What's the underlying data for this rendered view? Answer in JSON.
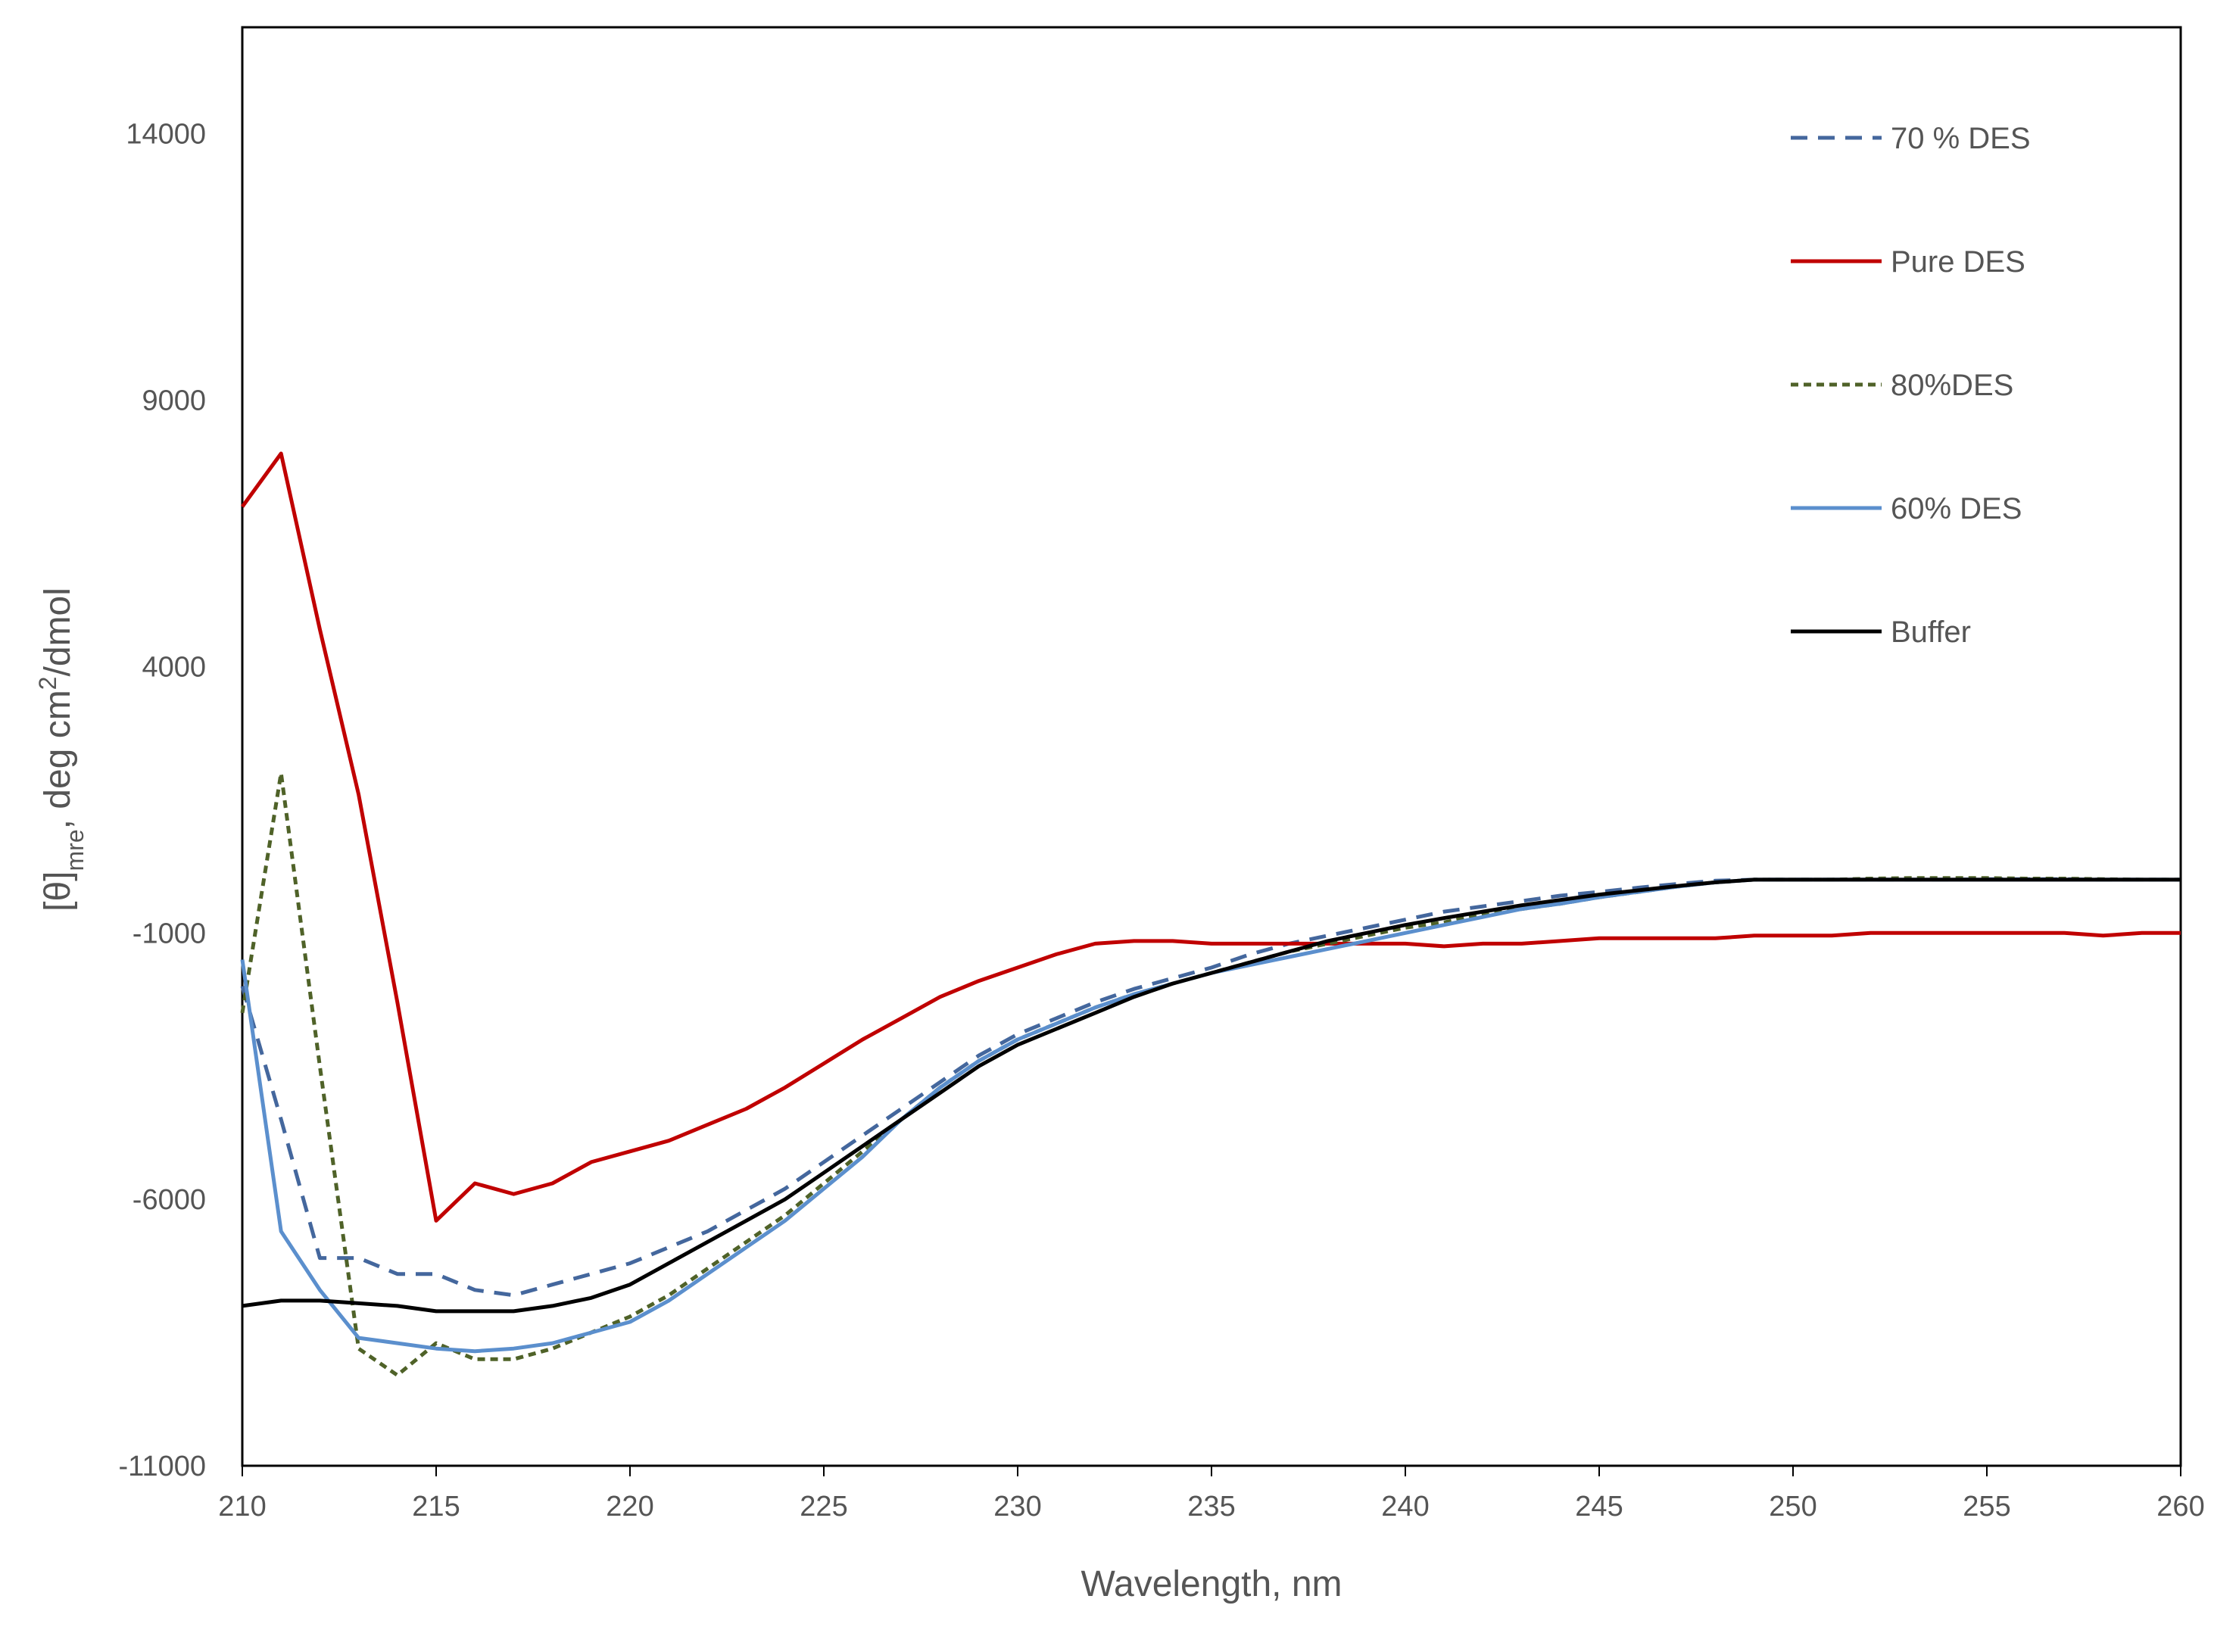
{
  "chart_data": {
    "type": "line",
    "title": "",
    "xlabel": "Wavelength, nm",
    "ylabel": {
      "main": "[θ]",
      "sub": "mre",
      "rest": ", deg cm",
      "sup": "2",
      "tail": "/dmol"
    },
    "xlim": [
      210,
      260
    ],
    "ylim": [
      -11000,
      16000
    ],
    "xticks": [
      "210",
      "215",
      "220",
      "225",
      "230",
      "235",
      "240",
      "245",
      "250",
      "255",
      "260"
    ],
    "yticks": [
      "14000",
      "9000",
      "4000",
      "-1000",
      "-6000",
      "-11000"
    ],
    "legend_position": "top-right",
    "grid": false,
    "series": [
      {
        "name": "70 % DES",
        "color": "#44679d",
        "dash": "dashed",
        "x": [
          210,
          211,
          212,
          213,
          214,
          215,
          216,
          217,
          218,
          219,
          220,
          221,
          222,
          223,
          224,
          225,
          226,
          227,
          228,
          229,
          230,
          231,
          232,
          233,
          234,
          235,
          236,
          237,
          238,
          239,
          240,
          241,
          242,
          243,
          244,
          245,
          246,
          247,
          248,
          249,
          250,
          251,
          252,
          253,
          254,
          255,
          256,
          257,
          258,
          259,
          260
        ],
        "y": [
          -2000,
          -4500,
          -7100,
          -7100,
          -7400,
          -7400,
          -7700,
          -7800,
          -7600,
          -7400,
          -7200,
          -6900,
          -6600,
          -6200,
          -5800,
          -5300,
          -4800,
          -4300,
          -3800,
          -3300,
          -2900,
          -2600,
          -2300,
          -2050,
          -1850,
          -1650,
          -1400,
          -1200,
          -1050,
          -900,
          -750,
          -600,
          -500,
          -400,
          -300,
          -230,
          -150,
          -80,
          -20,
          0,
          0,
          0,
          0,
          0,
          0,
          10,
          10,
          10,
          0,
          0,
          0
        ]
      },
      {
        "name": "Pure DES",
        "color": "#c00000",
        "dash": "solid",
        "x": [
          210,
          211,
          212,
          213,
          214,
          215,
          216,
          217,
          218,
          219,
          220,
          221,
          222,
          223,
          224,
          225,
          226,
          227,
          228,
          229,
          230,
          231,
          232,
          233,
          234,
          235,
          236,
          237,
          238,
          239,
          240,
          241,
          242,
          243,
          244,
          245,
          246,
          247,
          248,
          249,
          250,
          251,
          252,
          253,
          254,
          255,
          256,
          257,
          258,
          259,
          260
        ],
        "y": [
          7000,
          8000,
          4700,
          1600,
          -2300,
          -6400,
          -5700,
          -5900,
          -5700,
          -5300,
          -5100,
          -4900,
          -4600,
          -4300,
          -3900,
          -3450,
          -3000,
          -2600,
          -2200,
          -1900,
          -1650,
          -1400,
          -1200,
          -1150,
          -1150,
          -1200,
          -1200,
          -1200,
          -1200,
          -1200,
          -1200,
          -1250,
          -1200,
          -1200,
          -1150,
          -1100,
          -1100,
          -1100,
          -1100,
          -1050,
          -1050,
          -1050,
          -1000,
          -1000,
          -1000,
          -1000,
          -1000,
          -1000,
          -1050,
          -1000,
          -1000
        ]
      },
      {
        "name": "80%DES",
        "color": "#4f6228",
        "dash": "dotted",
        "x": [
          210,
          211,
          212,
          213,
          214,
          215,
          216,
          217,
          218,
          219,
          220,
          221,
          222,
          223,
          224,
          225,
          226,
          227,
          228,
          229,
          230,
          231,
          232,
          233,
          234,
          235,
          236,
          237,
          238,
          239,
          240,
          241,
          242,
          243,
          244,
          245,
          246,
          247,
          248,
          249,
          250,
          251,
          252,
          253,
          254,
          255,
          256,
          257,
          258,
          259,
          260
        ],
        "y": [
          -2500,
          2000,
          -3500,
          -8800,
          -9300,
          -8700,
          -9000,
          -9000,
          -8800,
          -8500,
          -8200,
          -7800,
          -7300,
          -6800,
          -6300,
          -5700,
          -5100,
          -4500,
          -3900,
          -3400,
          -3000,
          -2700,
          -2400,
          -2150,
          -1950,
          -1750,
          -1550,
          -1350,
          -1200,
          -1050,
          -900,
          -800,
          -650,
          -550,
          -450,
          -330,
          -230,
          -130,
          -50,
          0,
          0,
          0,
          20,
          30,
          30,
          30,
          20,
          20,
          10,
          0,
          0
        ]
      },
      {
        "name": "60% DES",
        "color": "#5b8fcd",
        "dash": "solid",
        "x": [
          210,
          211,
          212,
          213,
          214,
          215,
          216,
          217,
          218,
          219,
          220,
          221,
          222,
          223,
          224,
          225,
          226,
          227,
          228,
          229,
          230,
          231,
          232,
          233,
          234,
          235,
          236,
          237,
          238,
          239,
          240,
          241,
          242,
          243,
          244,
          245,
          246,
          247,
          248,
          249,
          250,
          251,
          252,
          253,
          254,
          255,
          256,
          257,
          258,
          259,
          260
        ],
        "y": [
          -1500,
          -6600,
          -7700,
          -8600,
          -8700,
          -8800,
          -8850,
          -8800,
          -8700,
          -8500,
          -8300,
          -7900,
          -7400,
          -6900,
          -6400,
          -5800,
          -5200,
          -4500,
          -3900,
          -3400,
          -3000,
          -2700,
          -2400,
          -2150,
          -1950,
          -1750,
          -1600,
          -1450,
          -1300,
          -1150,
          -1000,
          -850,
          -700,
          -550,
          -450,
          -330,
          -230,
          -130,
          -50,
          0,
          0,
          0,
          0,
          0,
          0,
          0,
          0,
          0,
          0,
          0,
          0
        ]
      },
      {
        "name": "Buffer",
        "color": "#000000",
        "dash": "solid",
        "x": [
          210,
          211,
          212,
          213,
          214,
          215,
          216,
          217,
          218,
          219,
          220,
          221,
          222,
          223,
          224,
          225,
          226,
          227,
          228,
          229,
          230,
          231,
          232,
          233,
          234,
          235,
          236,
          237,
          238,
          239,
          240,
          241,
          242,
          243,
          244,
          245,
          246,
          247,
          248,
          249,
          250,
          251,
          252,
          253,
          254,
          255,
          256,
          257,
          258,
          259,
          260
        ],
        "y": [
          -8000,
          -7900,
          -7900,
          -7950,
          -8000,
          -8100,
          -8100,
          -8100,
          -8000,
          -7850,
          -7600,
          -7200,
          -6800,
          -6400,
          -6000,
          -5500,
          -5000,
          -4500,
          -4000,
          -3500,
          -3100,
          -2800,
          -2500,
          -2200,
          -1950,
          -1750,
          -1550,
          -1350,
          -1150,
          -1000,
          -850,
          -720,
          -600,
          -480,
          -380,
          -280,
          -200,
          -120,
          -50,
          0,
          0,
          0,
          0,
          0,
          0,
          0,
          0,
          0,
          0,
          0,
          0
        ]
      }
    ]
  }
}
